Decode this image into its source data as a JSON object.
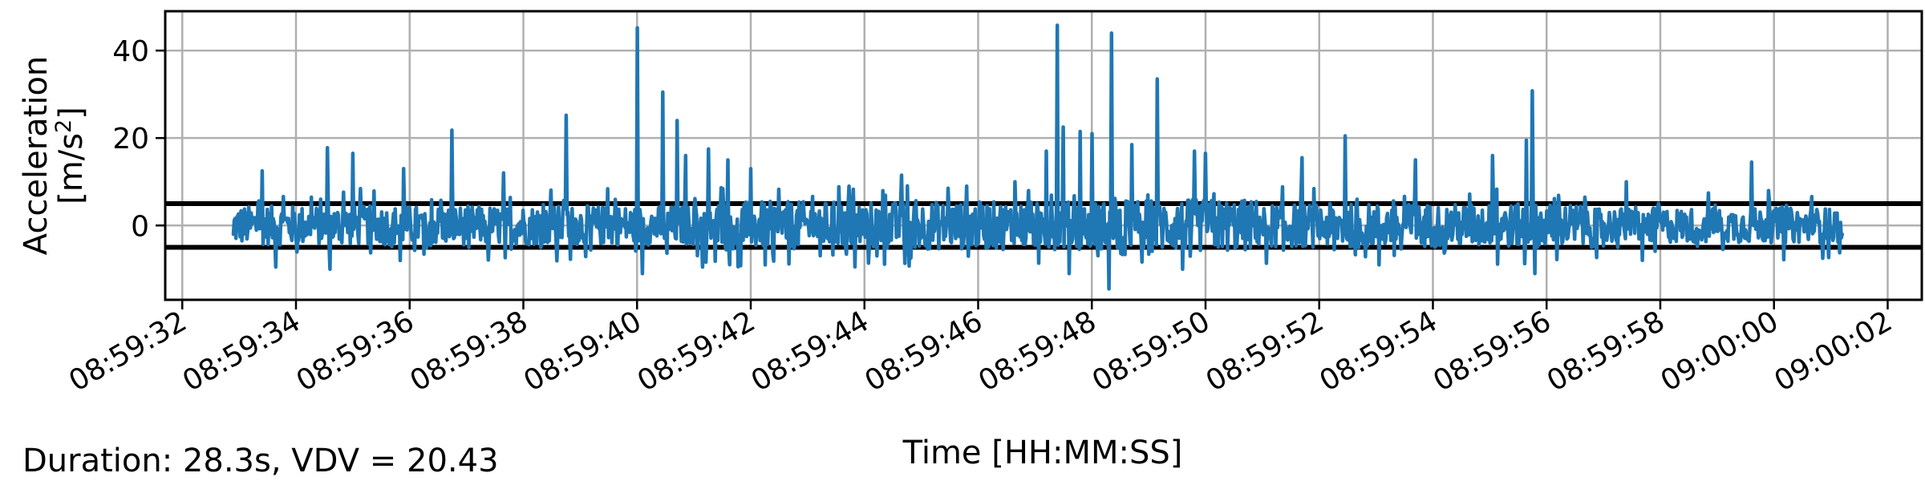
{
  "chart_data": {
    "type": "line",
    "title": "",
    "xlabel": "Time [HH:MM:SS]",
    "ylabel_line1": "Acceleration",
    "ylabel_line2_prefix": "[m/s",
    "ylabel_line2_sup": "2",
    "ylabel_line2_suffix": "]",
    "xlim": [
      "08:59:31.7",
      "09:00:02.6"
    ],
    "ylim": [
      -17,
      49
    ],
    "x_ticks": [
      "08:59:32",
      "08:59:34",
      "08:59:36",
      "08:59:38",
      "08:59:40",
      "08:59:42",
      "08:59:44",
      "08:59:46",
      "08:59:48",
      "08:59:50",
      "08:59:52",
      "08:59:54",
      "08:59:56",
      "08:59:58",
      "09:00:00",
      "09:00:02"
    ],
    "y_ticks": [
      0,
      20,
      40
    ],
    "grid": true,
    "threshold_lines": [
      5,
      -5
    ],
    "series": [
      {
        "color": "#1f77b4",
        "x_start": "08:59:32.9",
        "x_end": "09:00:01.2",
        "noise_band": [
          {
            "from": 0,
            "to": 8.5,
            "amp": 4.5
          },
          {
            "from": 8.5,
            "to": 15.5,
            "amp": 5.5
          },
          {
            "from": 15.5,
            "to": 18,
            "amp": 6.0
          },
          {
            "from": 18,
            "to": 24,
            "amp": 5.0
          },
          {
            "from": 24,
            "to": 30,
            "amp": 4.0
          }
        ],
        "peaks": [
          {
            "t": "08:59:40.00",
            "v": 45.2
          },
          {
            "t": "08:59:47.40",
            "v": 45.8
          },
          {
            "t": "08:59:48.35",
            "v": 44.0
          },
          {
            "t": "08:59:40.45",
            "v": 30.5
          },
          {
            "t": "08:59:55.75",
            "v": 30.8
          },
          {
            "t": "08:59:49.15",
            "v": 33.5
          },
          {
            "t": "08:59:38.75",
            "v": 25.2
          },
          {
            "t": "08:59:40.70",
            "v": 24.0
          },
          {
            "t": "08:59:36.75",
            "v": 21.8
          },
          {
            "t": "08:59:47.50",
            "v": 22.5
          },
          {
            "t": "08:59:47.80",
            "v": 21.5
          },
          {
            "t": "08:59:48.00",
            "v": 21.0
          },
          {
            "t": "08:59:52.45",
            "v": 20.5
          },
          {
            "t": "08:59:55.65",
            "v": 19.5
          },
          {
            "t": "08:59:34.55",
            "v": 17.8
          },
          {
            "t": "08:59:41.25",
            "v": 17.5
          },
          {
            "t": "08:59:48.70",
            "v": 18.5
          },
          {
            "t": "08:59:41.60",
            "v": 15.0
          },
          {
            "t": "08:59:47.20",
            "v": 17.0
          },
          {
            "t": "08:59:35.00",
            "v": 16.5
          },
          {
            "t": "08:59:40.85",
            "v": 16.0
          },
          {
            "t": "08:59:42.00",
            "v": 13.0
          },
          {
            "t": "08:59:50.00",
            "v": 16.5
          },
          {
            "t": "08:59:59.60",
            "v": 14.5
          },
          {
            "t": "08:59:33.40",
            "v": 12.5
          },
          {
            "t": "08:59:37.65",
            "v": 12.0
          },
          {
            "t": "08:59:44.65",
            "v": 11.5
          },
          {
            "t": "08:59:51.70",
            "v": 15.5
          },
          {
            "t": "08:59:55.05",
            "v": 16.0
          },
          {
            "t": "08:59:53.70",
            "v": 15.0
          },
          {
            "t": "08:59:35.90",
            "v": 13.0
          },
          {
            "t": "08:59:46.65",
            "v": 10.0
          },
          {
            "t": "08:59:49.80",
            "v": 17.0
          },
          {
            "t": "08:59:57.40",
            "v": 10.0
          },
          {
            "t": "08:59:40.10",
            "v": -11.0
          },
          {
            "t": "08:59:48.30",
            "v": -14.5
          },
          {
            "t": "08:59:55.80",
            "v": -11.0
          },
          {
            "t": "08:59:47.60",
            "v": -11.0
          },
          {
            "t": "08:59:34.60",
            "v": -10.0
          },
          {
            "t": "08:59:33.65",
            "v": -9.5
          },
          {
            "t": "08:59:41.15",
            "v": -9.5
          },
          {
            "t": "08:59:49.60",
            "v": -10.0
          },
          {
            "t": "08:59:53.05",
            "v": -9.0
          },
          {
            "t": "08:59:42.25",
            "v": -9.0
          },
          {
            "t": "09:00:00.85",
            "v": -7.5
          }
        ]
      }
    ]
  },
  "caption": "Duration: 28.3s, VDV = 20.43"
}
